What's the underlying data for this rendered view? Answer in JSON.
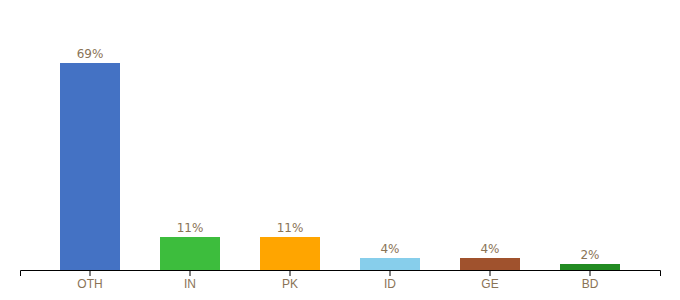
{
  "chart_data": {
    "type": "bar",
    "categories": [
      "OTH",
      "IN",
      "PK",
      "ID",
      "GE",
      "BD"
    ],
    "values": [
      69,
      11,
      11,
      4,
      4,
      2
    ],
    "value_labels": [
      "69%",
      "11%",
      "11%",
      "4%",
      "4%",
      "2%"
    ],
    "colors": [
      "#4472C4",
      "#3DBD3D",
      "#FFA500",
      "#87CEEB",
      "#A0522D",
      "#228B22"
    ],
    "ylim": [
      0,
      80
    ],
    "grid": false,
    "data_labels": true,
    "tick_labels": "x"
  }
}
